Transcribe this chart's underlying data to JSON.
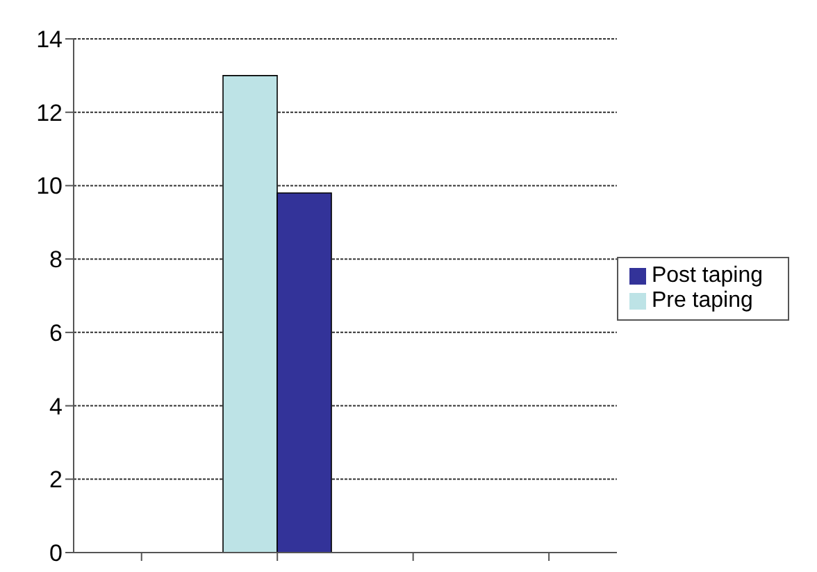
{
  "chart_data": {
    "type": "bar",
    "categories": [
      null,
      null,
      null,
      null
    ],
    "series": [
      {
        "name": "Pre taping",
        "color": "#bde3e6",
        "values": [
          null,
          13,
          null,
          null
        ]
      },
      {
        "name": "Post taping",
        "color": "#333399",
        "values": [
          null,
          9.8,
          null,
          null
        ]
      }
    ],
    "ylim": [
      0,
      14
    ],
    "yticks": [
      0,
      2,
      4,
      6,
      8,
      10,
      12,
      14
    ],
    "grid": "y",
    "legend": "right"
  }
}
